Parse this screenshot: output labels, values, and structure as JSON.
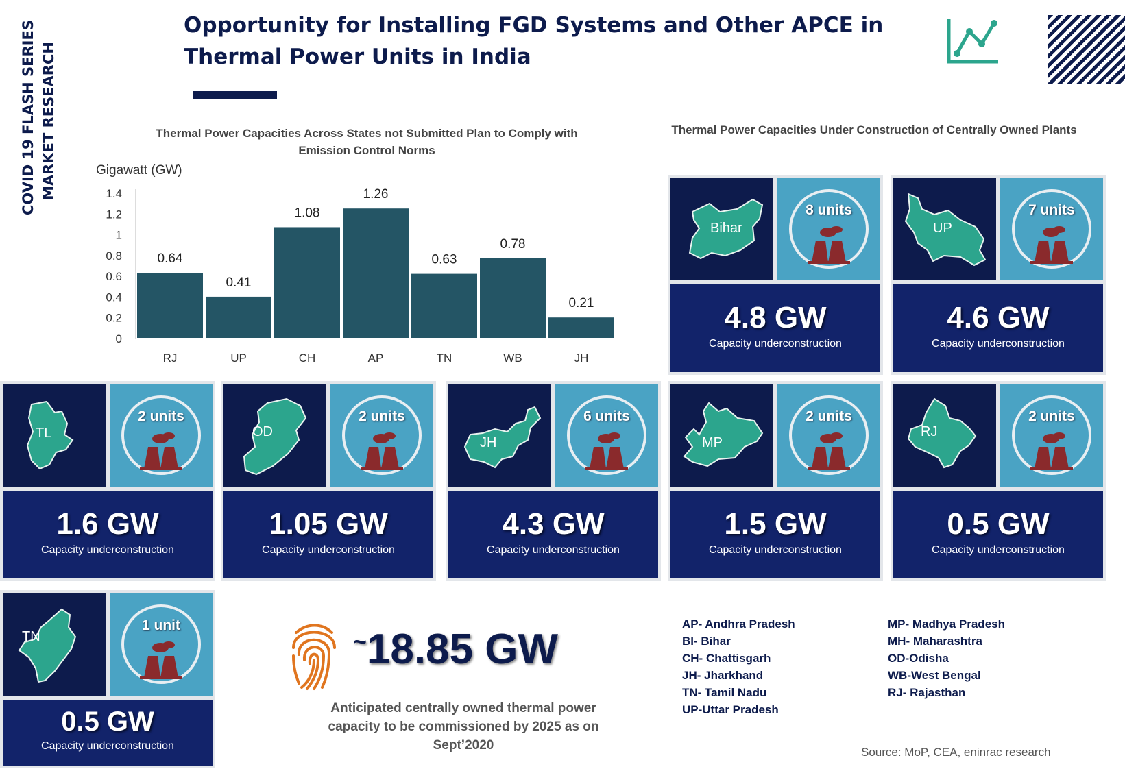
{
  "side_text": {
    "line1": "COVID 19 FLASH SERIES",
    "line2": "MARKET RESEARCH"
  },
  "title": "Opportunity for Installing FGD Systems and Other APCE in Thermal Power Units in India",
  "icons": {
    "trend": "trend-chart-icon",
    "hatch": "hatch-pattern",
    "plant": "power-plant-icon",
    "fingerprint": "fingerprint-icon"
  },
  "colors": {
    "navy": "#0d1b4c",
    "bar": "#245565",
    "tile_blue": "#12236a",
    "teal": "#4aa3c4",
    "map": "#2ca58d",
    "plant": "#8a2a2c",
    "accent_orange": "#e0751f"
  },
  "chart_data": {
    "type": "bar",
    "title": "Thermal Power Capacities Across States not Submitted Plan to Comply with Emission Control Norms",
    "ylabel": "Gigawatt (GW)",
    "xlabel": "",
    "categories": [
      "RJ",
      "UP",
      "CH",
      "AP",
      "TN",
      "WB",
      "JH"
    ],
    "values": [
      0.64,
      0.41,
      1.08,
      1.26,
      0.63,
      0.78,
      0.21
    ],
    "value_labels": [
      "0.64",
      "0.41",
      "1.08",
      "1.26",
      "0.63",
      "0.78",
      "0.21"
    ],
    "ylim": [
      0,
      1.4
    ],
    "yticks": [
      0,
      0.2,
      0.4,
      0.6,
      0.8,
      1,
      1.2,
      1.4
    ],
    "ytick_labels": [
      "0",
      "0.2",
      "0.4",
      "0.6",
      "0.8",
      "1",
      "1.2",
      "1.4"
    ],
    "grid": false
  },
  "right_title": "Thermal Power Capacities Under Construction of Centrally Owned Plants",
  "tiles": [
    {
      "state": "Bihar",
      "units": "8 units",
      "capacity": "4.8 GW",
      "caption": "Capacity underconstruction"
    },
    {
      "state": "UP",
      "units": "7 units",
      "capacity": "4.6 GW",
      "caption": "Capacity underconstruction"
    },
    {
      "state": "TL",
      "units": "2 units",
      "capacity": "1.6 GW",
      "caption": "Capacity underconstruction"
    },
    {
      "state": "OD",
      "units": "2 units",
      "capacity": "1.05 GW",
      "caption": "Capacity underconstruction"
    },
    {
      "state": "JH",
      "units": "6 units",
      "capacity": "4.3 GW",
      "caption": "Capacity underconstruction"
    },
    {
      "state": "MP",
      "units": "2 units",
      "capacity": "1.5 GW",
      "caption": "Capacity underconstruction"
    },
    {
      "state": "RJ",
      "units": "2 units",
      "capacity": "0.5 GW",
      "caption": "Capacity underconstruction"
    },
    {
      "state": "TN",
      "units": "1 unit",
      "capacity": "0.5 GW",
      "caption": "Capacity underconstruction"
    }
  ],
  "total": {
    "tilde": "~",
    "value": "18.85 GW",
    "description": "Anticipated centrally owned thermal power capacity to be commissioned by 2025 as on Sept’2020"
  },
  "legend": {
    "left": [
      "AP- Andhra Pradesh",
      "BI- Bihar",
      "CH- Chattisgarh",
      "JH- Jharkhand",
      "TN- Tamil Nadu",
      "UP-Uttar Pradesh"
    ],
    "right": [
      "MP- Madhya Pradesh",
      "MH- Maharashtra",
      "OD-Odisha",
      "WB-West Bengal",
      "RJ- Rajasthan"
    ]
  },
  "source": "Source: MoP, CEA, eninrac research"
}
